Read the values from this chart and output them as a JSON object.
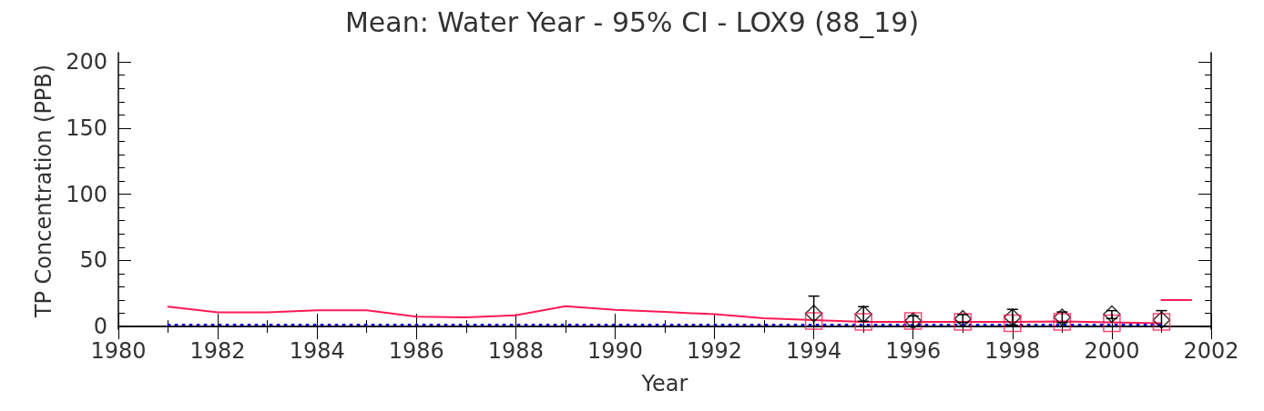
{
  "chart_data": {
    "type": "line",
    "title": "Mean: Water Year - 95% CI - LOX9 (88_19)",
    "xlabel": "Year",
    "ylabel": "TP Concentration (PPB)",
    "xlim": [
      1980,
      2002
    ],
    "xticks": [
      1980,
      1982,
      1984,
      1986,
      1988,
      1990,
      1992,
      1994,
      1996,
      1998,
      2000,
      2002
    ],
    "ylim": [
      -2,
      207
    ],
    "yticks": [
      0,
      50,
      100,
      150,
      200
    ],
    "grid": false,
    "series": [
      {
        "color": "#ff1a55",
        "line_style": "solid",
        "marker": "none",
        "x": [
          1981,
          1982,
          1983,
          1984,
          1985,
          1986,
          1987,
          1988,
          1989,
          1990,
          1991,
          1992,
          1993,
          1994,
          1995,
          1996,
          1997,
          1998,
          1999,
          2000,
          2001
        ],
        "values": [
          15,
          10.7,
          10.7,
          12.3,
          12.3,
          7.4,
          6.9,
          8.5,
          15.3,
          12.6,
          11,
          9.3,
          6.3,
          4.9,
          3.5,
          3.5,
          3.5,
          3.5,
          3.9,
          3.2,
          2.5
        ]
      },
      {
        "type": "line",
        "color": "#0000ff",
        "line_style": "dotted",
        "marker": "none",
        "x": [
          1981,
          2001
        ],
        "values": [
          1.5,
          1.5
        ]
      },
      {
        "type": "scatter",
        "color": "#000000",
        "marker": "diamond",
        "x": [
          1994,
          1995,
          1996,
          1997,
          1998,
          1999,
          2000,
          2001
        ],
        "values": [
          9.9,
          9.3,
          4.2,
          5.8,
          6.9,
          6.9,
          9.3,
          4.9
        ],
        "errors": [
          [
            0,
            23
          ],
          [
            4,
            15
          ],
          [
            0,
            8
          ],
          [
            3,
            9
          ],
          [
            1,
            13
          ],
          [
            3,
            11
          ],
          [
            6,
            12
          ],
          [
            0,
            12
          ]
        ]
      },
      {
        "type": "scatter",
        "color": "#ff1a55",
        "marker": "square",
        "x": [
          1994,
          1995,
          1996,
          1997,
          1998,
          1999,
          2000,
          2001
        ],
        "values": [
          4.2,
          3.5,
          4.2,
          3.5,
          2.5,
          3.5,
          2.5,
          3.5
        ]
      },
      {
        "type": "line",
        "color": "#ff1a55",
        "line_style": "solid",
        "marker": "none",
        "x": [
          2001,
          2001.6
        ],
        "values": [
          20,
          20
        ]
      }
    ]
  }
}
